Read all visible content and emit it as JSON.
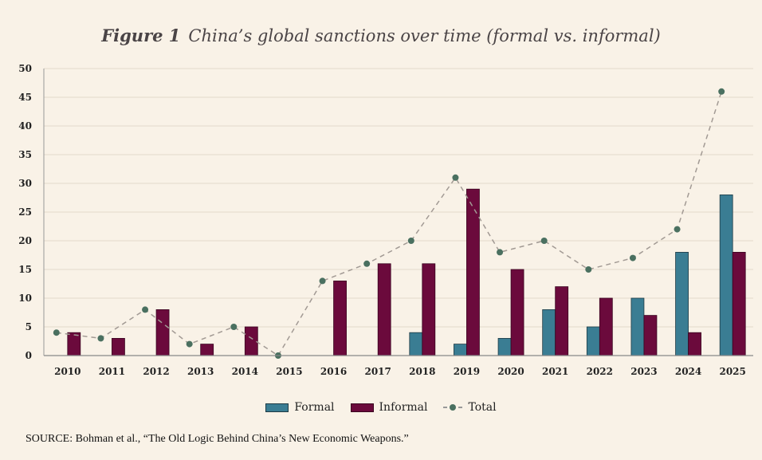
{
  "title": {
    "figure_label": "Figure 1",
    "text": "China’s global sanctions over time (formal vs. informal)"
  },
  "source": "SOURCE: Bohman et al., “The Old Logic Behind China’s New Economic Weapons.”",
  "colors": {
    "formal": "#3a7d93",
    "informal": "#6b0a3c",
    "total": "#4a7060",
    "background": "#f9f2e7"
  },
  "chart_data": {
    "type": "bar",
    "title": "Figure 1 China’s global sanctions over time (formal vs. informal)",
    "xlabel": "",
    "ylabel": "",
    "ylim": [
      0,
      50
    ],
    "yticks": [
      0,
      5,
      10,
      15,
      20,
      25,
      30,
      35,
      40,
      45,
      50
    ],
    "grid": true,
    "legend_position": "bottom",
    "categories": [
      "2010",
      "2011",
      "2012",
      "2013",
      "2014",
      "2015",
      "2016",
      "2017",
      "2018",
      "2019",
      "2020",
      "2021",
      "2022",
      "2023",
      "2024",
      "2025"
    ],
    "series": [
      {
        "name": "Formal",
        "type": "bar",
        "values": [
          0,
          0,
          0,
          0,
          0,
          0,
          0,
          0,
          4,
          2,
          3,
          8,
          5,
          10,
          18,
          28
        ]
      },
      {
        "name": "Informal",
        "type": "bar",
        "values": [
          4,
          3,
          8,
          2,
          5,
          0,
          13,
          16,
          16,
          29,
          15,
          12,
          10,
          7,
          4,
          18
        ]
      },
      {
        "name": "Total",
        "type": "line",
        "style": "dashed with markers",
        "values": [
          4,
          3,
          8,
          2,
          5,
          0,
          13,
          16,
          20,
          31,
          18,
          20,
          15,
          17,
          22,
          46
        ]
      }
    ]
  }
}
